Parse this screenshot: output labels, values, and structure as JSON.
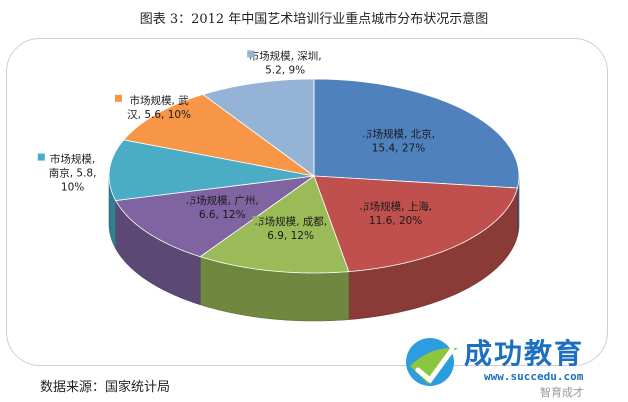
{
  "title": "图表 3：2012 年中国艺术培训行业重点城市分布状况示意图",
  "source": "数据来源：国家统计局",
  "logo": {
    "name": "成功教育",
    "url": "www.succedu.com",
    "watermark": "智育成才"
  },
  "chart_data": {
    "type": "pie",
    "style": "3d",
    "title": "",
    "series_name": "市场规模",
    "slices": [
      {
        "label": "北京",
        "value": 15.4,
        "percent": "27%",
        "color": "#4F81BD",
        "text": [
          "市场规模, 北京,",
          "15.4, 27%"
        ]
      },
      {
        "label": "上海",
        "value": 11.6,
        "percent": "20%",
        "color": "#C0504D",
        "text": [
          "市场规模, 上海,",
          "11.6, 20%"
        ]
      },
      {
        "label": "成都",
        "value": 6.9,
        "percent": "12%",
        "color": "#9BBB59",
        "text": [
          "市场规模, 成都,",
          "6.9, 12%"
        ]
      },
      {
        "label": "广州",
        "value": 6.6,
        "percent": "12%",
        "color": "#8064A2",
        "text": [
          "市场规模, 广州,",
          "6.6, 12%"
        ]
      },
      {
        "label": "南京",
        "value": 5.8,
        "percent": "10%",
        "color": "#4BACC6",
        "text": [
          "市场规模,",
          "南京, 5.8,",
          "10%"
        ]
      },
      {
        "label": "武汉",
        "value": 5.6,
        "percent": "10%",
        "color": "#F79646",
        "text": [
          "市场规模, 武",
          "汉, 5.6, 10%"
        ]
      },
      {
        "label": "深圳",
        "value": 5.2,
        "percent": "9%",
        "color": "#95B3D7",
        "text": [
          "市场规模, 深圳,",
          "5.2, 9%"
        ]
      }
    ],
    "legend": "none",
    "show_data_labels": true
  }
}
